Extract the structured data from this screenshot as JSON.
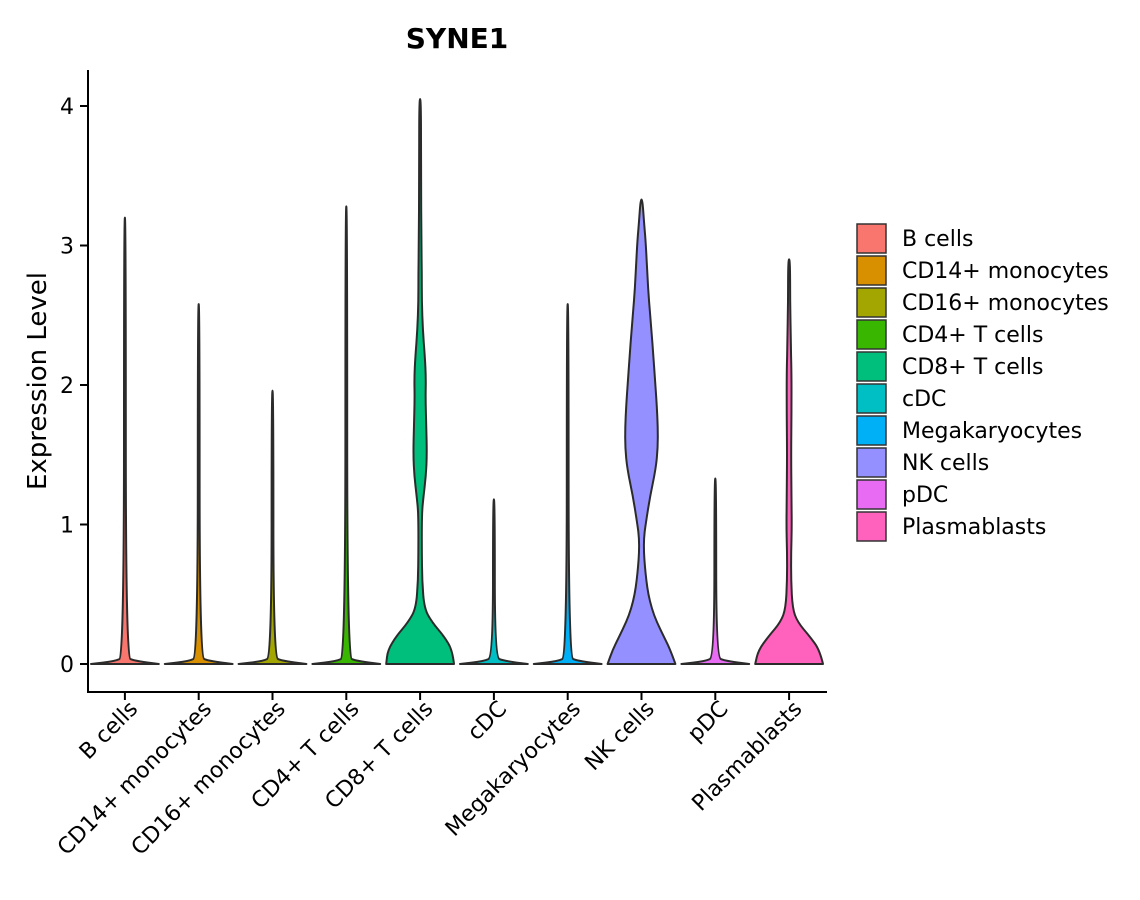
{
  "chart_data": {
    "type": "violin",
    "title": "SYNE1",
    "xlabel": "",
    "ylabel": "Expression Level",
    "ylim": [
      -0.2,
      4.25
    ],
    "yticks": [
      0,
      1,
      2,
      3,
      4
    ],
    "categories": [
      "B cells",
      "CD14+ monocytes",
      "CD16+ monocytes",
      "CD4+ T cells",
      "CD8+ T cells",
      "cDC",
      "Megakaryocytes",
      "NK cells",
      "pDC",
      "Plasmablasts"
    ],
    "colors": [
      "#F8766D",
      "#D89000",
      "#A3A500",
      "#39B600",
      "#00BF7D",
      "#00BFC4",
      "#00B0F6",
      "#9590FF",
      "#E76BF3",
      "#FF62BC"
    ],
    "max_values": [
      3.2,
      2.58,
      1.96,
      3.28,
      4.05,
      1.18,
      2.58,
      3.33,
      1.33,
      2.9
    ],
    "density_profiles": [
      [
        [
          0,
          1.0
        ],
        [
          0.02,
          0.3
        ],
        [
          0.05,
          0.02
        ],
        [
          3.2,
          0.02
        ]
      ],
      [
        [
          0,
          1.0
        ],
        [
          0.02,
          0.3
        ],
        [
          0.05,
          0.02
        ],
        [
          2.58,
          0.02
        ]
      ],
      [
        [
          0,
          1.0
        ],
        [
          0.02,
          0.3
        ],
        [
          0.05,
          0.02
        ],
        [
          1.96,
          0.02
        ]
      ],
      [
        [
          0,
          1.0
        ],
        [
          0.02,
          0.3
        ],
        [
          0.05,
          0.02
        ],
        [
          3.28,
          0.02
        ]
      ],
      [
        [
          0,
          1.0
        ],
        [
          0.1,
          0.95
        ],
        [
          0.2,
          0.7
        ],
        [
          0.3,
          0.35
        ],
        [
          0.4,
          0.12
        ],
        [
          0.6,
          0.06
        ],
        [
          0.8,
          0.05
        ],
        [
          1.0,
          0.05
        ],
        [
          1.1,
          0.06
        ],
        [
          1.2,
          0.1
        ],
        [
          1.35,
          0.17
        ],
        [
          1.5,
          0.2
        ],
        [
          1.7,
          0.18
        ],
        [
          1.9,
          0.16
        ],
        [
          2.05,
          0.17
        ],
        [
          2.2,
          0.14
        ],
        [
          2.4,
          0.08
        ],
        [
          2.6,
          0.05
        ],
        [
          2.8,
          0.05
        ],
        [
          3.0,
          0.04
        ],
        [
          3.5,
          0.02
        ],
        [
          4.05,
          0.01
        ]
      ],
      [
        [
          0,
          1.0
        ],
        [
          0.02,
          0.3
        ],
        [
          0.05,
          0.02
        ],
        [
          1.18,
          0.02
        ]
      ],
      [
        [
          0,
          1.0
        ],
        [
          0.02,
          0.3
        ],
        [
          0.05,
          0.02
        ],
        [
          2.58,
          0.02
        ]
      ],
      [
        [
          0,
          1.0
        ],
        [
          0.1,
          0.85
        ],
        [
          0.2,
          0.65
        ],
        [
          0.3,
          0.45
        ],
        [
          0.4,
          0.3
        ],
        [
          0.5,
          0.2
        ],
        [
          0.6,
          0.14
        ],
        [
          0.7,
          0.1
        ],
        [
          0.8,
          0.07
        ],
        [
          0.9,
          0.07
        ],
        [
          1.0,
          0.12
        ],
        [
          1.2,
          0.25
        ],
        [
          1.4,
          0.42
        ],
        [
          1.55,
          0.48
        ],
        [
          1.7,
          0.48
        ],
        [
          1.85,
          0.45
        ],
        [
          2.0,
          0.41
        ],
        [
          2.2,
          0.35
        ],
        [
          2.4,
          0.29
        ],
        [
          2.6,
          0.22
        ],
        [
          2.8,
          0.17
        ],
        [
          3.0,
          0.13
        ],
        [
          3.15,
          0.08
        ],
        [
          3.33,
          0.02
        ]
      ],
      [
        [
          0,
          1.0
        ],
        [
          0.02,
          0.3
        ],
        [
          0.05,
          0.02
        ],
        [
          1.33,
          0.02
        ]
      ],
      [
        [
          0,
          1.0
        ],
        [
          0.1,
          0.9
        ],
        [
          0.2,
          0.6
        ],
        [
          0.3,
          0.25
        ],
        [
          0.4,
          0.1
        ],
        [
          0.6,
          0.06
        ],
        [
          0.8,
          0.06
        ],
        [
          1.0,
          0.08
        ],
        [
          1.2,
          0.07
        ],
        [
          1.5,
          0.06
        ],
        [
          1.8,
          0.07
        ],
        [
          2.1,
          0.07
        ],
        [
          2.3,
          0.05
        ],
        [
          2.6,
          0.03
        ],
        [
          2.9,
          0.02
        ]
      ]
    ],
    "legend": {
      "position": "right",
      "entries": [
        "B cells",
        "CD14+ monocytes",
        "CD16+ monocytes",
        "CD4+ T cells",
        "CD8+ T cells",
        "cDC",
        "Megakaryocytes",
        "NK cells",
        "pDC",
        "Plasmablasts"
      ]
    }
  }
}
